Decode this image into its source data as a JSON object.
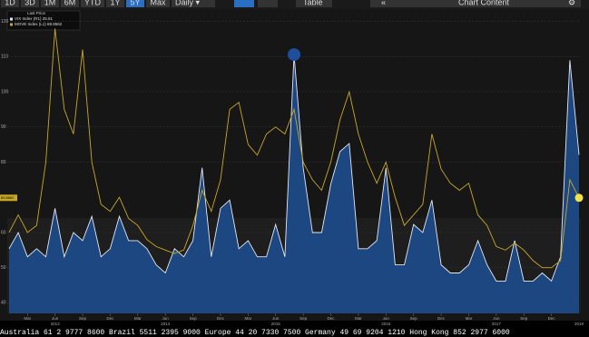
{
  "toolbar": {
    "ranges": [
      "1D",
      "3D",
      "1M",
      "6M",
      "YTD",
      "1Y",
      "5Y",
      "Max"
    ],
    "active": "5Y",
    "frequency": "Daily ▾",
    "table": "Table",
    "back": "«",
    "content": "Chart Content",
    "settings": "⚙"
  },
  "chart_data": {
    "type": "line",
    "legend_title": "Last Price",
    "categories": [
      null,
      null,
      "Mar",
      null,
      null,
      "Jun",
      null,
      null,
      "Sep",
      null,
      null,
      "Dec",
      null,
      null,
      "Mar",
      null,
      null,
      "Jun",
      null,
      null,
      "Sep",
      null,
      null,
      "Dec",
      null,
      null,
      "Mar",
      null,
      null,
      "Jun",
      null,
      null,
      "Sep",
      null,
      null,
      "Dec",
      null,
      null,
      "Mar",
      null,
      null,
      "Jun",
      null,
      null,
      "Sep",
      null,
      null,
      "Dec",
      null,
      null,
      "Mar",
      null,
      null,
      "Jun",
      null,
      null,
      "Sep",
      null,
      null,
      "Dec",
      null,
      null,
      null
    ],
    "years": [
      "2013",
      "2014",
      "2015",
      "2016",
      "2017",
      "2018"
    ],
    "ylim": [
      37,
      123
    ],
    "yticks": [
      40,
      50,
      60,
      80,
      90,
      100,
      110,
      120
    ],
    "y2lim": [
      6,
      43.4
    ],
    "grid": true,
    "series": [
      {
        "name": "VIX Index (R1) 25.61",
        "axis": "y2",
        "color": "#e6e8f2",
        "area_color": "#1d4a86",
        "values": [
          14,
          16,
          13,
          14,
          13,
          19,
          13,
          16,
          15,
          18,
          13,
          14,
          18,
          15,
          15,
          14,
          12,
          11,
          14,
          13,
          15,
          24,
          13,
          19,
          20,
          14,
          15,
          13,
          13,
          17,
          13,
          38,
          24,
          16,
          16,
          22,
          26,
          27,
          14,
          14,
          15,
          24,
          12,
          12,
          17,
          16,
          20,
          12,
          11,
          11,
          12,
          15,
          12,
          10,
          10,
          15,
          10,
          10,
          11,
          10,
          13,
          37.3,
          25.61
        ]
      },
      {
        "name": "MOVE Index (L1) 69.8562",
        "color": "#c9a826",
        "values": [
          60,
          65,
          60,
          62,
          80,
          118,
          95,
          88,
          112,
          80,
          68,
          66,
          70,
          64,
          62,
          58,
          56,
          55,
          54,
          55,
          62,
          72,
          66,
          75,
          95,
          97,
          85,
          82,
          88,
          90,
          88,
          95,
          80,
          75,
          72,
          80,
          92,
          100,
          88,
          80,
          74,
          80,
          70,
          62,
          65,
          68,
          88,
          78,
          74,
          72,
          74,
          65,
          62,
          56,
          55,
          57,
          55,
          52,
          50,
          50,
          52,
          75,
          69.8562
        ]
      }
    ]
  },
  "footer": "Australia 61 2 9777 8600 Brazil 5511 2395 9000 Europe 44 20 7330 7500 Germany 49 69 9204 1210 Hong Kong 852 2977 6000"
}
